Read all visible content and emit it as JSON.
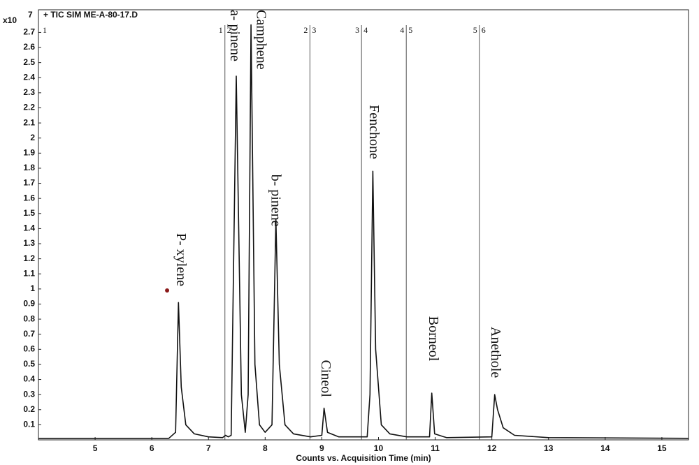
{
  "chart_data": {
    "type": "line",
    "title": "+ TIC SIM ME-A-80-17.D",
    "y_multiplier": "x10",
    "y_multiplier_exponent": "7",
    "xlabel": "Counts vs. Acquisition Time (min)",
    "xlim": [
      4.0,
      15.47
    ],
    "ylim": [
      0,
      2.85
    ],
    "xticks": [
      5,
      6,
      7,
      8,
      9,
      10,
      11,
      12,
      13,
      14,
      15
    ],
    "yticks": [
      0.1,
      0.2,
      0.3,
      0.4,
      0.5,
      0.6,
      0.7,
      0.8,
      0.9,
      1,
      1.1,
      1.2,
      1.3,
      1.4,
      1.5,
      1.6,
      1.7,
      1.8,
      1.9,
      2,
      2.1,
      2.2,
      2.3,
      2.4,
      2.5,
      2.6,
      2.7
    ],
    "segment_boundaries": [
      7.29,
      8.79,
      9.7,
      10.49,
      11.78
    ],
    "segment_labels": [
      "1",
      "2",
      "3",
      "4",
      "5",
      "6"
    ],
    "series": [
      {
        "color": "#111111",
        "x": [
          4.0,
          6.3,
          6.42,
          6.47,
          6.52,
          6.6,
          6.75,
          7.0,
          7.25,
          7.3,
          7.35,
          7.4,
          7.49,
          7.58,
          7.65,
          7.7,
          7.75,
          7.82,
          7.9,
          8.0,
          8.12,
          8.19,
          8.25,
          8.35,
          8.5,
          8.8,
          9.0,
          9.04,
          9.1,
          9.3,
          9.8,
          9.85,
          9.9,
          9.95,
          10.05,
          10.2,
          10.5,
          10.9,
          10.94,
          10.99,
          11.2,
          12.0,
          12.05,
          12.1,
          12.2,
          12.4,
          13.0,
          15.47
        ],
        "values": [
          0.01,
          0.01,
          0.05,
          0.91,
          0.35,
          0.1,
          0.04,
          0.02,
          0.015,
          0.03,
          0.02,
          0.03,
          2.41,
          0.3,
          0.05,
          0.3,
          2.75,
          0.5,
          0.1,
          0.05,
          0.1,
          1.46,
          0.5,
          0.1,
          0.04,
          0.02,
          0.03,
          0.21,
          0.05,
          0.02,
          0.02,
          0.3,
          1.78,
          0.6,
          0.1,
          0.04,
          0.02,
          0.02,
          0.31,
          0.04,
          0.015,
          0.02,
          0.3,
          0.2,
          0.08,
          0.03,
          0.015,
          0.01
        ]
      }
    ],
    "highlight_point": {
      "x": 6.27,
      "y": 0.99,
      "color": "#8b1a1a"
    },
    "annotations": [
      {
        "text": "P- xylene",
        "x": 6.5,
        "y": 1.37
      },
      {
        "text": "a- pinene",
        "x": 7.45,
        "y": 2.85
      },
      {
        "text": "Camphene",
        "x": 7.91,
        "y": 2.85
      },
      {
        "text": "b- pinene",
        "x": 8.17,
        "y": 1.76
      },
      {
        "text": "Cineol",
        "x": 9.05,
        "y": 0.53
      },
      {
        "text": "Fenchone",
        "x": 9.9,
        "y": 2.22
      },
      {
        "text": "Borneol",
        "x": 10.95,
        "y": 0.82
      },
      {
        "text": "Anethole",
        "x": 12.05,
        "y": 0.75
      }
    ]
  }
}
